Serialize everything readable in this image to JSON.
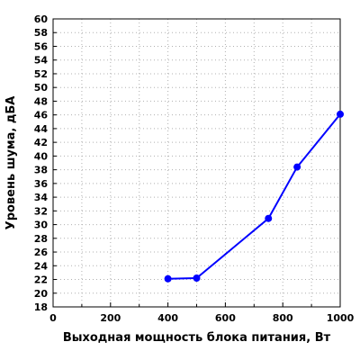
{
  "chart_data": {
    "type": "line",
    "title": "",
    "xlabel": "Выходная мощность блока питания, Вт",
    "ylabel": "Уровень шума, дБА",
    "xlim": [
      0,
      1000
    ],
    "ylim": [
      18,
      60
    ],
    "x_ticks": [
      0,
      200,
      400,
      600,
      800,
      1000
    ],
    "x_minor_step": 100,
    "y_ticks": [
      18,
      20,
      22,
      24,
      26,
      28,
      30,
      32,
      34,
      36,
      38,
      40,
      42,
      44,
      46,
      48,
      50,
      52,
      54,
      56,
      58,
      60
    ],
    "grid": true,
    "series": [
      {
        "color": "#0000ff",
        "x": [
          400,
          500,
          750,
          850,
          1000
        ],
        "y": [
          22.1,
          22.2,
          30.9,
          38.4,
          46.1
        ]
      }
    ]
  }
}
